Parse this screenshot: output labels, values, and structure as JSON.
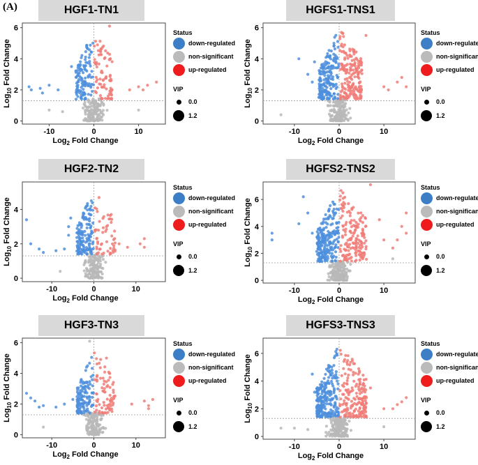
{
  "figure_label": "(A)",
  "colors": {
    "down": "#4e8fdd",
    "ns": "#b8b8b8",
    "up": "#f07c78",
    "legend_down": "#3d7fc7",
    "legend_ns": "#bbbbbb",
    "legend_up": "#ee1c1c",
    "strip": "#d9d9d9"
  },
  "legend": {
    "status_title": "Status",
    "down_label": "down-regulated",
    "ns_label": "non-significant",
    "up_label": "up-regulated",
    "vip_title": "VIP",
    "vip_small": "0.0",
    "vip_large": "1.2"
  },
  "chart_data": [
    {
      "type": "scatter",
      "title": "HGF1-TN1",
      "xlabel_main": "Log",
      "xlabel_sub": "2",
      "xlabel_rest": " Fold Change",
      "ylabel_main": "Log",
      "ylabel_sub": "10",
      "ylabel_rest": " Fold Change",
      "xlim": [
        -16,
        16
      ],
      "ylim": [
        -0.2,
        6.3
      ],
      "xticks": [
        -10,
        0,
        10
      ],
      "yticks": [
        0,
        2,
        4,
        6
      ],
      "threshold_y": 1.3,
      "threshold_x": 0,
      "counts": {
        "down": 120,
        "ns": 150,
        "up": 80
      },
      "params": {
        "downMin": -4,
        "upMax": 4,
        "yMax": 6.2
      },
      "outliers_down": [
        [
          -14.5,
          2.2
        ],
        [
          -14,
          2.0
        ],
        [
          -12,
          2.1
        ],
        [
          -10,
          2.3
        ],
        [
          -11.5,
          1.8
        ],
        [
          -8,
          2.0
        ],
        [
          -5,
          3.5
        ]
      ],
      "outliers_up": [
        [
          8,
          2.0
        ],
        [
          10,
          2.2
        ],
        [
          11,
          2.0
        ],
        [
          12,
          2.3
        ],
        [
          14,
          2.5
        ],
        [
          3.5,
          6.1
        ]
      ],
      "outliers_ns": [
        [
          -10,
          0.7
        ],
        [
          -7,
          0.6
        ],
        [
          10,
          0.7
        ]
      ]
    },
    {
      "type": "scatter",
      "title": "HGFS1-TNS1",
      "xlabel_main": "Log",
      "xlabel_sub": "2",
      "xlabel_rest": " Fold Change",
      "ylabel_main": "Log",
      "ylabel_sub": "10",
      "ylabel_rest": " Fold Change",
      "xlim": [
        -17,
        17
      ],
      "ylim": [
        -0.2,
        6.3
      ],
      "xticks": [
        -10,
        0,
        10
      ],
      "yticks": [
        0,
        2,
        4,
        6
      ],
      "threshold_y": 1.3,
      "threshold_x": 0,
      "counts": {
        "down": 190,
        "ns": 170,
        "up": 190
      },
      "params": {
        "downMin": -4.5,
        "upMax": 5,
        "yMax": 6.1
      },
      "outliers_down": [
        [
          -9,
          4.0
        ],
        [
          -7,
          3.0
        ],
        [
          -6,
          2.5
        ],
        [
          -5.5,
          3.8
        ]
      ],
      "outliers_up": [
        [
          10,
          2.2
        ],
        [
          11,
          2.0
        ],
        [
          13,
          2.5
        ],
        [
          14,
          2.8
        ],
        [
          15,
          2.2
        ],
        [
          6,
          5.5
        ]
      ],
      "outliers_ns": [
        [
          -13,
          0.4
        ]
      ]
    },
    {
      "type": "scatter",
      "title": "HGF2-TN2",
      "xlabel_main": "Log",
      "xlabel_sub": "2",
      "xlabel_rest": " Fold Change",
      "ylabel_main": "Log",
      "ylabel_sub": "10",
      "ylabel_rest": " Fold Change",
      "xlim": [
        -17,
        17
      ],
      "ylim": [
        -0.2,
        5.6
      ],
      "xticks": [
        -10,
        0,
        10
      ],
      "yticks": [
        0,
        2,
        4
      ],
      "threshold_y": 1.3,
      "threshold_x": 0,
      "counts": {
        "down": 150,
        "ns": 150,
        "up": 55
      },
      "params": {
        "downMin": -4,
        "upMax": 5,
        "yMax": 5.4
      },
      "outliers_down": [
        [
          -16,
          3.4
        ],
        [
          -15,
          2.0
        ],
        [
          -13,
          1.7
        ],
        [
          -12,
          1.5
        ],
        [
          -9,
          1.6
        ],
        [
          -7,
          1.7
        ],
        [
          -6,
          3.0
        ],
        [
          -5.5,
          3.5
        ],
        [
          -6,
          2.5
        ]
      ],
      "outliers_up": [
        [
          6,
          2.0
        ],
        [
          8,
          1.8
        ],
        [
          11,
          2.0
        ],
        [
          12,
          2.3
        ],
        [
          12,
          1.8
        ],
        [
          3,
          3.0
        ]
      ],
      "outliers_ns": [
        [
          -8,
          0.4
        ]
      ]
    },
    {
      "type": "scatter",
      "title": "HGFS2-TNS2",
      "xlabel_main": "Log",
      "xlabel_sub": "2",
      "xlabel_rest": " Fold Change",
      "ylabel_main": "Log",
      "ylabel_sub": "10",
      "ylabel_rest": " Fold Change",
      "xlim": [
        -17,
        17
      ],
      "ylim": [
        -0.2,
        7.3
      ],
      "xticks": [
        -10,
        0,
        10
      ],
      "yticks": [
        0,
        2,
        4,
        6
      ],
      "threshold_y": 1.3,
      "threshold_x": 0,
      "counts": {
        "down": 230,
        "ns": 180,
        "up": 170
      },
      "params": {
        "downMin": -5,
        "upMax": 6,
        "yMax": 7
      },
      "outliers_down": [
        [
          -15,
          3.5
        ],
        [
          -15,
          3.0
        ],
        [
          -8,
          6.2
        ],
        [
          -7,
          5.0
        ],
        [
          -9,
          4.2
        ],
        [
          -6,
          3.5
        ]
      ],
      "outliers_up": [
        [
          10,
          3.0
        ],
        [
          12,
          2.4
        ],
        [
          13,
          3.0
        ],
        [
          14,
          4.0
        ],
        [
          15,
          5.0
        ],
        [
          15,
          3.5
        ],
        [
          7,
          7.1
        ],
        [
          9,
          4.5
        ]
      ],
      "outliers_ns": [
        [
          12,
          1.6
        ]
      ]
    },
    {
      "type": "scatter",
      "title": "HGF3-TN3",
      "xlabel_main": "Log",
      "xlabel_sub": "2",
      "xlabel_rest": " Fold Change",
      "ylabel_main": "Log",
      "ylabel_sub": "10",
      "ylabel_rest": " Fold Change",
      "xlim": [
        -17,
        17
      ],
      "ylim": [
        -0.2,
        6.3
      ],
      "xticks": [
        -10,
        0,
        10
      ],
      "yticks": [
        0,
        2,
        4,
        6
      ],
      "threshold_y": 1.3,
      "threshold_x": 0,
      "counts": {
        "down": 130,
        "ns": 150,
        "up": 80
      },
      "params": {
        "downMin": -4,
        "upMax": 5,
        "yMax": 5.6
      },
      "outliers_down": [
        [
          -16,
          2.7
        ],
        [
          -15,
          2.4
        ],
        [
          -14,
          2.2
        ],
        [
          -13,
          1.8
        ],
        [
          -12,
          1.9
        ],
        [
          -9,
          1.8
        ],
        [
          -7,
          2.0
        ],
        [
          -5,
          2.3
        ]
      ],
      "outliers_up": [
        [
          9,
          2.0
        ],
        [
          12,
          2.2
        ],
        [
          13,
          1.9
        ],
        [
          14,
          2.3
        ],
        [
          13,
          1.7
        ],
        [
          3,
          5.0
        ]
      ],
      "outliers_ns": [
        [
          -12,
          0.5
        ],
        [
          -1,
          6.1
        ]
      ]
    },
    {
      "type": "scatter",
      "title": "HGFS3-TNS3",
      "xlabel_main": "Log",
      "xlabel_sub": "2",
      "xlabel_rest": " Fold Change",
      "ylabel_main": "Log",
      "ylabel_sub": "10",
      "ylabel_rest": " Fold Change",
      "xlim": [
        -17,
        17
      ],
      "ylim": [
        -0.2,
        7.1
      ],
      "xticks": [
        -10,
        0,
        10
      ],
      "yticks": [
        0,
        2,
        4,
        6
      ],
      "threshold_y": 1.3,
      "threshold_x": 0,
      "counts": {
        "down": 240,
        "ns": 190,
        "up": 180
      },
      "params": {
        "downMin": -5,
        "upMax": 6,
        "yMax": 6.8
      },
      "outliers_down": [
        [
          -6,
          4.5
        ],
        [
          -5.5,
          3.2
        ]
      ],
      "outliers_up": [
        [
          12,
          2.0
        ],
        [
          13,
          2.3
        ],
        [
          14,
          2.5
        ],
        [
          15,
          2.8
        ],
        [
          10,
          2.0
        ],
        [
          7,
          3.5
        ]
      ],
      "outliers_ns": [
        [
          -13,
          0.6
        ],
        [
          -10,
          0.6
        ],
        [
          -7,
          0.5
        ],
        [
          10,
          0.7
        ]
      ]
    }
  ]
}
